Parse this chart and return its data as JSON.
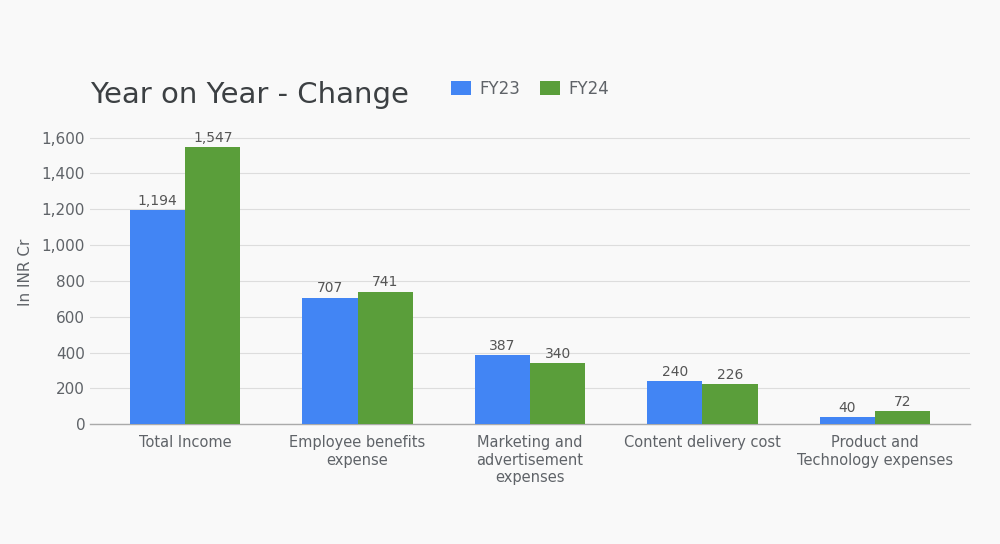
{
  "title": "Year on Year - Change",
  "ylabel": "In INR Cr",
  "categories": [
    "Total Income",
    "Employee benefits\nexpense",
    "Marketing and\nadvertisement\nexpenses",
    "Content delivery cost",
    "Product and\nTechnology expenses"
  ],
  "fy23_values": [
    1194,
    707,
    387,
    240,
    40
  ],
  "fy24_values": [
    1547,
    741,
    340,
    226,
    72
  ],
  "fy23_label": "FY23",
  "fy24_label": "FY24",
  "fy23_color": "#4285F4",
  "fy24_color": "#5A9E3A",
  "background_color": "#F9F9F9",
  "ylim": [
    0,
    1700
  ],
  "yticks": [
    0,
    200,
    400,
    600,
    800,
    1000,
    1200,
    1400,
    1600
  ],
  "bar_width": 0.32,
  "title_fontsize": 21,
  "label_fontsize": 10.5,
  "tick_fontsize": 11,
  "ylabel_fontsize": 11,
  "legend_fontsize": 12,
  "value_label_fontsize": 10,
  "value_label_color": "#555555",
  "grid_color": "#DDDDDD",
  "spine_color": "#AAAAAA",
  "text_color": "#5F6368"
}
